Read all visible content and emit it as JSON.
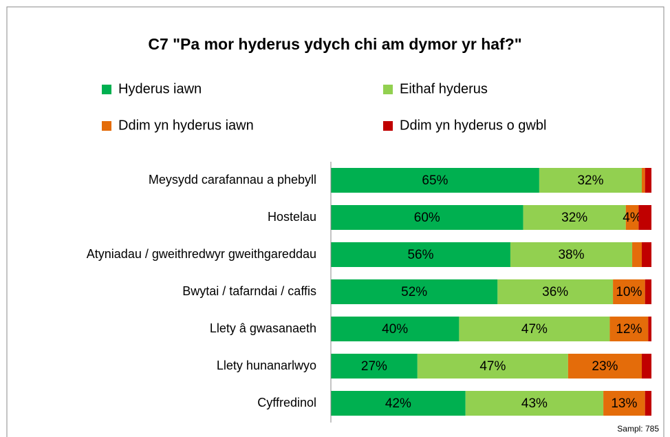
{
  "chart_data": {
    "type": "stacked-barh",
    "title": "C7 \"Pa mor hyderus ydych chi am dymor yr haf?\"",
    "note": "Sampl: 785",
    "categories": [
      "Meysydd carafannau a phebyll",
      "Hostelau",
      "Atyniadau / gweithredwyr gweithgareddau",
      "Bwytai / tafarndai / caffis",
      "Llety â gwasanaeth",
      "Llety hunanarlwyo",
      "Cyffredinol"
    ],
    "series": [
      {
        "name": "Hyderus iawn",
        "color": "#00b050",
        "values": [
          65,
          60,
          56,
          52,
          40,
          27,
          42
        ],
        "value_labels": [
          "65%",
          "60%",
          "56%",
          "52%",
          "40%",
          "27%",
          "42%"
        ]
      },
      {
        "name": "Eithaf hyderus",
        "color": "#92d050",
        "values": [
          32,
          32,
          38,
          36,
          47,
          47,
          43
        ],
        "value_labels": [
          "32%",
          "32%",
          "38%",
          "36%",
          "47%",
          "47%",
          "43%"
        ]
      },
      {
        "name": "Ddim yn hyderus iawn",
        "color": "#e46c0a",
        "values": [
          1,
          4,
          3,
          10,
          12,
          23,
          13
        ],
        "value_labels": [
          null,
          "4%",
          null,
          "10%",
          "12%",
          "23%",
          "13%"
        ]
      },
      {
        "name": "Ddim yn hyderus o gwbl",
        "color": "#c00000",
        "values": [
          2,
          4,
          3,
          2,
          1,
          3,
          2
        ],
        "value_labels": [
          null,
          null,
          null,
          null,
          null,
          null,
          null
        ]
      }
    ],
    "xlim": [
      0,
      100
    ],
    "legend": "top"
  }
}
